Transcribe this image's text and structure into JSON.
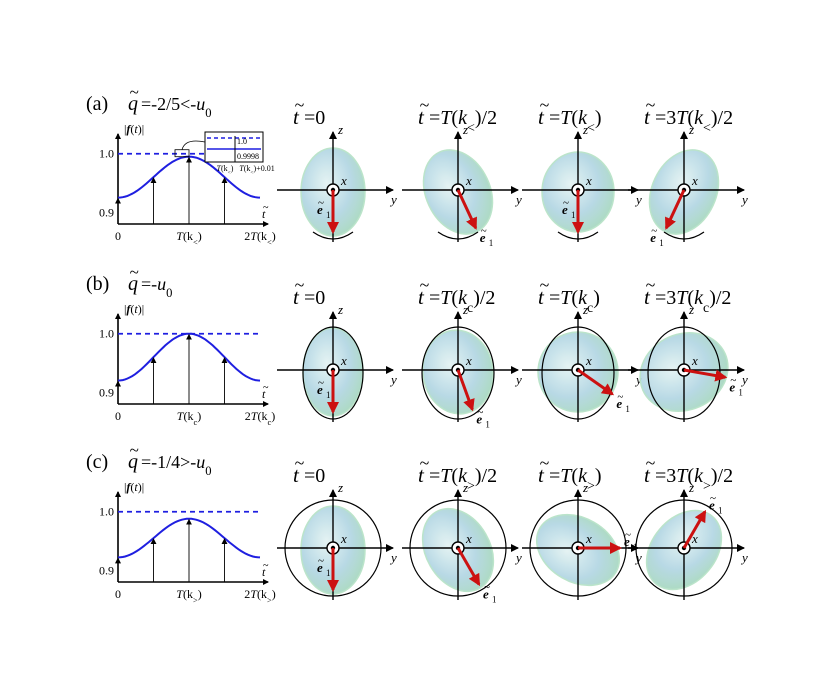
{
  "colors": {
    "curve": "#1f1fe0",
    "dashed": "#1f1fe0",
    "vector": "#cc1111",
    "blob_light": "#d6ecec",
    "blob_mid": "#a9cfe0",
    "blob_edge": "#b8e3c8"
  },
  "rows": [
    {
      "id": "a",
      "label": "(a)",
      "q": "q",
      "q_tilde": "~",
      "condition": "=-2/5<-",
      "u": "u",
      "u_sub": "0",
      "plot": {
        "ylabel": "|f(t)|",
        "y_ticks": [
          "1.0",
          "0.9"
        ],
        "x_ticks": [
          "0",
          "T(k<)",
          "2T(k<)"
        ],
        "xaxis_symbol": "t",
        "inset": {
          "top_label": "1.0",
          "bottom_label": "0.9998",
          "x_left": "T(k<)",
          "x_right": "T(k<)+0.01"
        }
      },
      "chart_data": {
        "type": "line",
        "x": [
          0,
          0.25,
          0.5,
          0.75,
          1.0,
          1.25,
          1.5,
          1.75,
          2.0
        ],
        "y": [
          0.925,
          0.935,
          0.96,
          0.985,
          0.995,
          0.985,
          0.96,
          0.935,
          0.925
        ],
        "reference": 1.0,
        "ylim": [
          0.88,
          1.02
        ],
        "xlabel": "t",
        "ylabel": "|f(t)|"
      },
      "panels": [
        {
          "t_label": "t",
          "t_value": "=0",
          "angle_deg": 180,
          "orbit": "arc_bottom"
        },
        {
          "t_label": "t",
          "t_value": "=T(k<)/2",
          "angle_deg": 155,
          "orbit": "arc_bottom"
        },
        {
          "t_label": "t",
          "t_value": "=T(k<)",
          "angle_deg": 180,
          "orbit": "arc_bottom"
        },
        {
          "t_label": "t",
          "t_value": "=3T(k<)/2",
          "angle_deg": 205,
          "orbit": "arc_bottom"
        }
      ]
    },
    {
      "id": "b",
      "label": "(b)",
      "q": "q",
      "q_tilde": "~",
      "condition": "=-",
      "u": "u",
      "u_sub": "0",
      "plot": {
        "ylabel": "|f(t)|",
        "y_ticks": [
          "1.0",
          "0.9"
        ],
        "x_ticks": [
          "0",
          "T(kc)",
          "2T(kc)"
        ],
        "xaxis_symbol": "t"
      },
      "chart_data": {
        "type": "line",
        "x": [
          0,
          0.25,
          0.5,
          0.75,
          1.0,
          1.25,
          1.5,
          1.75,
          2.0
        ],
        "y": [
          0.92,
          0.935,
          0.965,
          0.99,
          1.0,
          0.99,
          0.965,
          0.935,
          0.92
        ],
        "reference": 1.0,
        "ylim": [
          0.88,
          1.02
        ],
        "xlabel": "t",
        "ylabel": "|f(t)|"
      },
      "panels": [
        {
          "t_label": "t",
          "t_value": "=0",
          "angle_deg": 180,
          "orbit": "oval"
        },
        {
          "t_label": "t",
          "t_value": "=T(kc)/2",
          "angle_deg": 160,
          "orbit": "oval"
        },
        {
          "t_label": "t",
          "t_value": "=T(kc)",
          "angle_deg": 125,
          "orbit": "oval"
        },
        {
          "t_label": "t",
          "t_value": "=3T(kc)/2",
          "angle_deg": 100,
          "orbit": "oval"
        }
      ]
    },
    {
      "id": "c",
      "label": "(c)",
      "q": "q",
      "q_tilde": "~",
      "condition": "=-1/4>-",
      "u": "u",
      "u_sub": "0",
      "plot": {
        "ylabel": "|f(t)|",
        "y_ticks": [
          "1.0",
          "0.9"
        ],
        "x_ticks": [
          "0",
          "T(k>)",
          "2T(k>)"
        ],
        "xaxis_symbol": "t"
      },
      "chart_data": {
        "type": "line",
        "x": [
          0,
          0.25,
          0.5,
          0.75,
          1.0,
          1.25,
          1.5,
          1.75,
          2.0
        ],
        "y": [
          0.922,
          0.932,
          0.955,
          0.978,
          0.988,
          0.978,
          0.955,
          0.932,
          0.922
        ],
        "reference": 1.0,
        "ylim": [
          0.88,
          1.02
        ],
        "xlabel": "t",
        "ylabel": "|f(t)|"
      },
      "panels": [
        {
          "t_label": "t",
          "t_value": "=0",
          "angle_deg": 180,
          "orbit": "circle"
        },
        {
          "t_label": "t",
          "t_value": "=T(k>)/2",
          "angle_deg": 150,
          "orbit": "circle"
        },
        {
          "t_label": "t",
          "t_value": "=T(k>)",
          "angle_deg": 90,
          "orbit": "circle"
        },
        {
          "t_label": "t",
          "t_value": "=3T(k>)/2",
          "angle_deg": 30,
          "orbit": "circle"
        }
      ]
    }
  ],
  "axes_labels": {
    "z": "z",
    "y": "y",
    "x": "x",
    "e": "e",
    "e_sub": "1",
    "e_tilde": "~"
  }
}
